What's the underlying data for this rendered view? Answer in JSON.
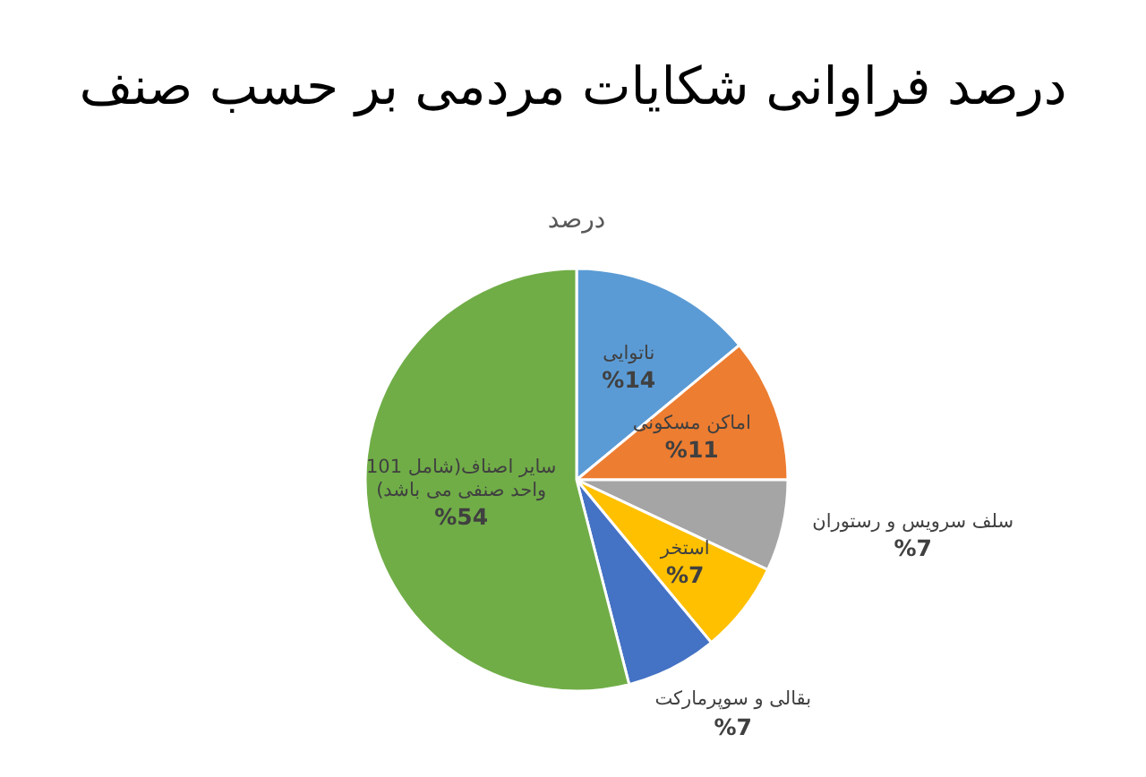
{
  "chart_data": {
    "type": "pie",
    "title": "درصد فراوانی شکایات مردمی بر حسب صنف",
    "subtitle": "درصد",
    "categories": [
      "ناتوایی",
      "اماکن مسکونی",
      "سلف سرویس و رستوران",
      "استخر",
      "بقالی و سوپرمارکت",
      "سایر اصناف(شامل 101 واحد صنفی می باشد)"
    ],
    "values": [
      14,
      11,
      7,
      7,
      7,
      54
    ],
    "value_labels": [
      "%14",
      "%11",
      "%7",
      "%7",
      "%7",
      "%54"
    ],
    "colors": [
      "#5b9bd5",
      "#ed7d31",
      "#a5a5a5",
      "#ffc000",
      "#4472c4",
      "#70ad47"
    ]
  }
}
